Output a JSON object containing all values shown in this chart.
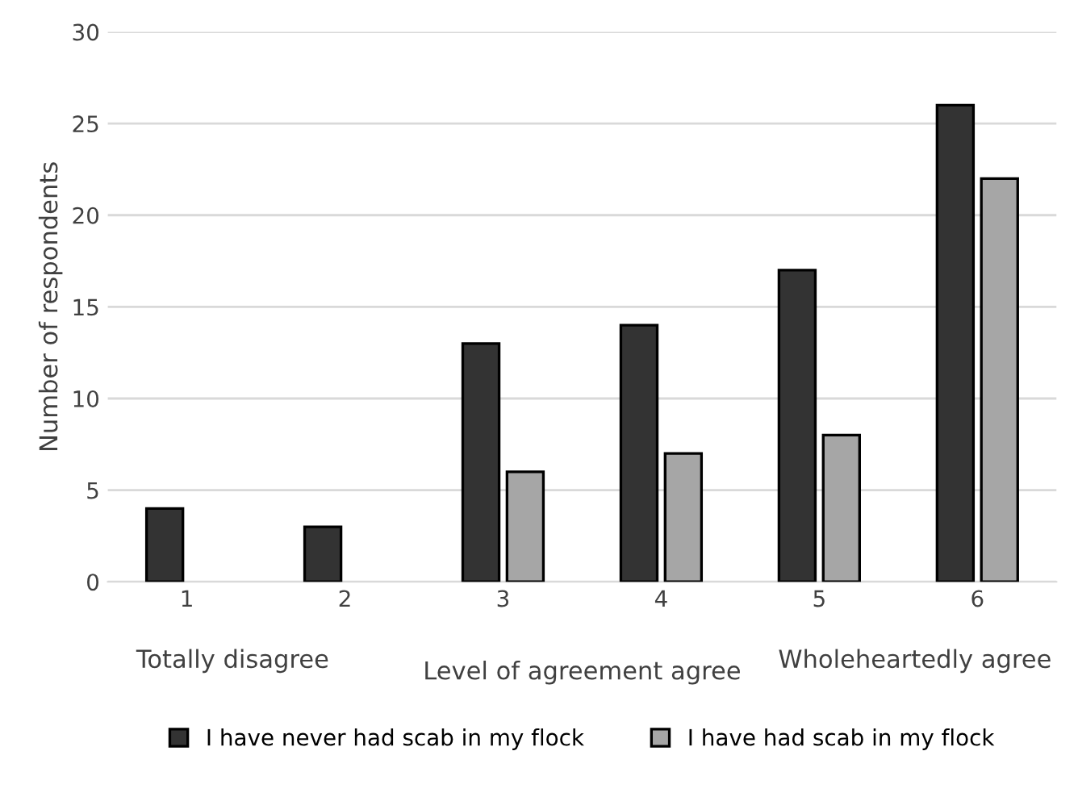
{
  "chart_data": {
    "type": "bar",
    "xlabel": "Level of agreement agree",
    "ylabel": "Number of respondents",
    "categories": [
      "1",
      "2",
      "3",
      "4",
      "5",
      "6"
    ],
    "series": [
      {
        "name": "I have never had scab in my flock",
        "color": "#333333",
        "values": [
          4,
          3,
          13,
          14,
          17,
          26
        ]
      },
      {
        "name": "I have had scab in my flock",
        "color": "#a6a6a6",
        "values": [
          null,
          null,
          6,
          7,
          8,
          22
        ]
      }
    ],
    "ylim": [
      0,
      30
    ],
    "yticks": [
      0,
      5,
      10,
      15,
      20,
      25,
      30
    ],
    "grid": "y",
    "legend": "bottom",
    "annotations": [
      "Totally disagree",
      "Wholeheartedly agree"
    ]
  }
}
